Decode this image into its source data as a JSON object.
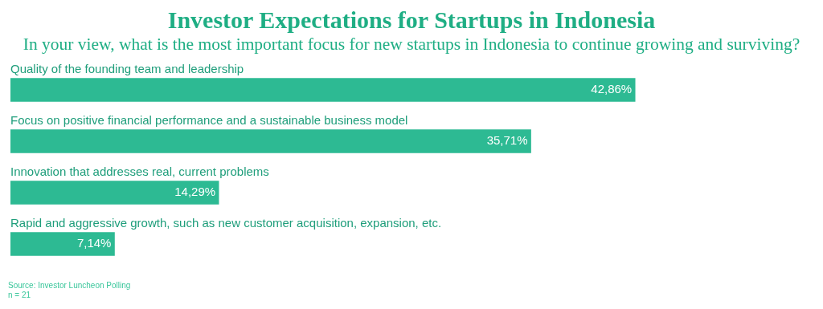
{
  "chart_data": {
    "type": "bar",
    "orientation": "horizontal",
    "title": "Investor Expectations for Startups in Indonesia",
    "subtitle": "In your view, what is the most important focus for new startups in Indonesia to continue growing and surviving?",
    "categories": [
      "Quality of the founding team and leadership",
      "Focus on positive financial performance and a sustainable business model",
      "Innovation that addresses real, current problems",
      "Rapid and aggressive growth, such as new customer acquisition, expansion, etc."
    ],
    "values": [
      42.86,
      35.71,
      14.29,
      7.14
    ],
    "value_labels": [
      "42,86%",
      "35,71%",
      "14,29%",
      "7,14%"
    ],
    "color": "#2dba93",
    "annotations": [
      "Source: Investor Luncheon Polling",
      "n = 21"
    ]
  }
}
